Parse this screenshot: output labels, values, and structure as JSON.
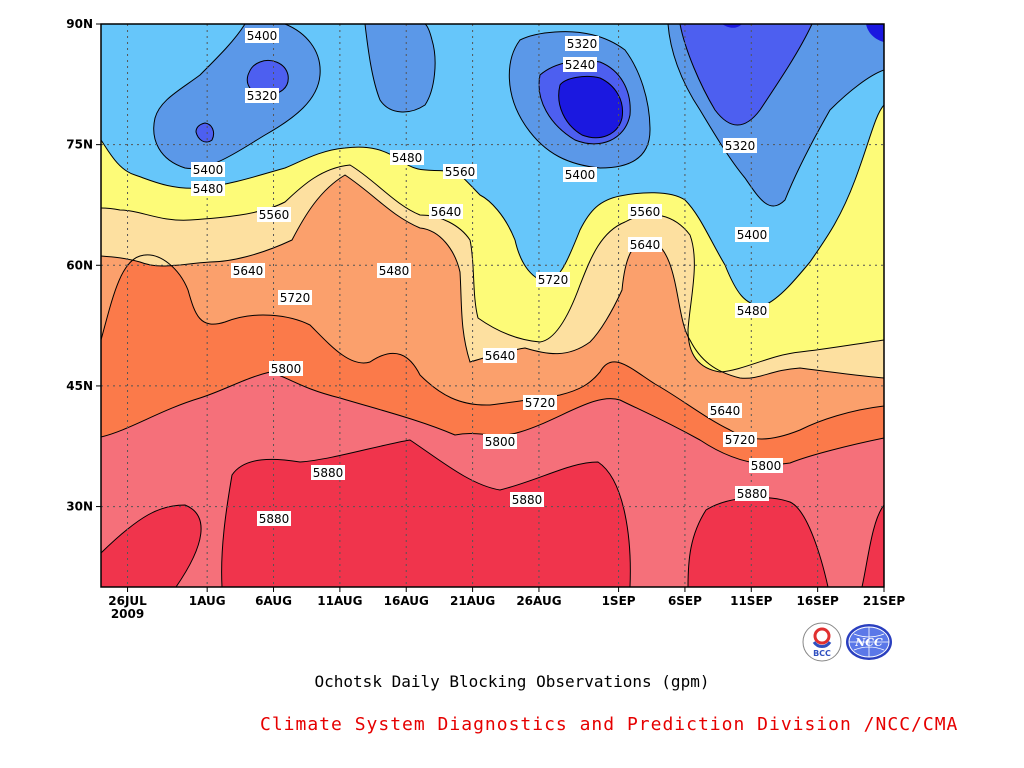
{
  "chart_data": {
    "type": "contour",
    "title": "Ochotsk Daily Blocking Observations (gpm)",
    "xaxis": {
      "ticks": [
        "26JUL",
        "1AUG",
        "6AUG",
        "11AUG",
        "16AUG",
        "21AUG",
        "26AUG",
        "1SEP",
        "6SEP",
        "11SEP",
        "16SEP",
        "21SEP"
      ],
      "year_label": "2009",
      "range": [
        "2009-07-24",
        "2009-09-21"
      ]
    },
    "yaxis": {
      "ticks": [
        "30N",
        "45N",
        "60N",
        "75N",
        "90N"
      ],
      "range": [
        20,
        90
      ]
    },
    "levels": [
      5240,
      5320,
      5400,
      5480,
      5560,
      5640,
      5720,
      5800,
      5880
    ],
    "contour_labels": [
      {
        "value": "5400"
      },
      {
        "value": "5320"
      },
      {
        "value": "5320"
      },
      {
        "value": "5240"
      },
      {
        "value": "5400"
      },
      {
        "value": "5480"
      },
      {
        "value": "5480"
      },
      {
        "value": "5560"
      },
      {
        "value": "5400"
      },
      {
        "value": "5320"
      },
      {
        "value": "5560"
      },
      {
        "value": "5640"
      },
      {
        "value": "5560"
      },
      {
        "value": "5640"
      },
      {
        "value": "5400"
      },
      {
        "value": "5720"
      },
      {
        "value": "5640"
      },
      {
        "value": "5480"
      },
      {
        "value": "5720"
      },
      {
        "value": "5480"
      },
      {
        "value": "5640"
      },
      {
        "value": "5800"
      },
      {
        "value": "5720"
      },
      {
        "value": "5640"
      },
      {
        "value": "5800"
      },
      {
        "value": "5720"
      },
      {
        "value": "5880"
      },
      {
        "value": "5800"
      },
      {
        "value": "5880"
      },
      {
        "value": "5880"
      },
      {
        "value": "5880"
      }
    ],
    "grid": true
  },
  "colors": {
    "5880": "#f0344c",
    "5800": "#f5707a",
    "5720": "#fb7a4a",
    "5640": "#fba06c",
    "5560": "#fde0a0",
    "5480": "#fdfb78",
    "5400": "#66c6fa",
    "5320": "#5b98e8",
    "5240": "#4d5ff0",
    "5160": "#1b18e0"
  },
  "footer": {
    "title": "Ochotsk Daily Blocking Observations (gpm)",
    "credit": "Climate System Diagnostics and Prediction Division /NCC/CMA",
    "logo1_text": "BCC",
    "logo2_text": "NCC"
  }
}
